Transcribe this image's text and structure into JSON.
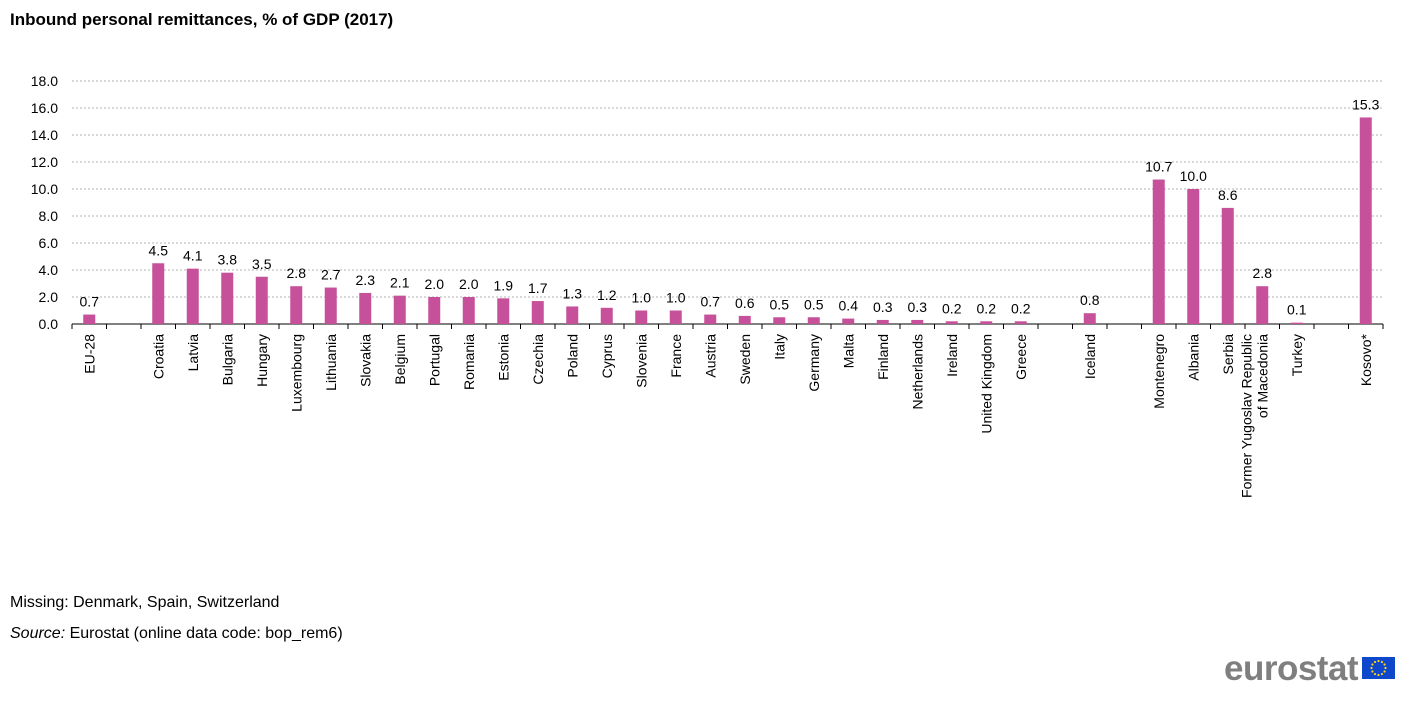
{
  "chart_data": {
    "type": "bar",
    "title": "Inbound personal remittances, % of GDP (2017)",
    "ylim": [
      0,
      18
    ],
    "yticks": [
      "0.0",
      "2.0",
      "4.0",
      "6.0",
      "8.0",
      "10.0",
      "12.0",
      "14.0",
      "16.0",
      "18.0"
    ],
    "grid": true,
    "bar_color": "#c6519a",
    "categories": [
      "EU-28",
      "",
      "Croatia",
      "Latvia",
      "Bulgaria",
      "Hungary",
      "Luxembourg",
      "Lithuania",
      "Slovakia",
      "Belgium",
      "Portugal",
      "Romania",
      "Estonia",
      "Czechia",
      "Poland",
      "Cyprus",
      "Slovenia",
      "France",
      "Austria",
      "Sweden",
      "Italy",
      "Germany",
      "Malta",
      "Finland",
      "Netherlands",
      "Ireland",
      "United Kingdom",
      "Greece",
      "",
      "Iceland",
      "",
      "Montenegro",
      "Albania",
      "Serbia",
      "Former Yugoslav Republic of Macedonia",
      "Turkey",
      "",
      "Kosovo*"
    ],
    "values": [
      0.7,
      null,
      4.5,
      4.1,
      3.8,
      3.5,
      2.8,
      2.7,
      2.3,
      2.1,
      2.0,
      2.0,
      1.9,
      1.7,
      1.3,
      1.2,
      1.0,
      1.0,
      0.7,
      0.6,
      0.5,
      0.5,
      0.4,
      0.3,
      0.3,
      0.2,
      0.2,
      0.2,
      null,
      0.8,
      null,
      10.7,
      10.0,
      8.6,
      2.8,
      0.1,
      null,
      15.3
    ],
    "value_labels": [
      "0.7",
      "",
      "4.5",
      "4.1",
      "3.8",
      "3.5",
      "2.8",
      "2.7",
      "2.3",
      "2.1",
      "2.0",
      "2.0",
      "1.9",
      "1.7",
      "1.3",
      "1.2",
      "1.0",
      "1.0",
      "0.7",
      "0.6",
      "0.5",
      "0.5",
      "0.4",
      "0.3",
      "0.3",
      "0.2",
      "0.2",
      "0.2",
      "",
      "0.8",
      "",
      "10.7",
      "10.0",
      "8.6",
      "2.8",
      "0.1",
      "",
      "15.3"
    ]
  },
  "notes": {
    "missing": "Missing: Denmark, Spain, Switzerland",
    "source_label": "Source:",
    "source_text": " Eurostat (online data code: bop_rem6)"
  },
  "logo": {
    "text": "eurostat",
    "icon": "eu-flag-icon",
    "flag_color": "#0e47cb",
    "star_color": "#ffd617"
  }
}
